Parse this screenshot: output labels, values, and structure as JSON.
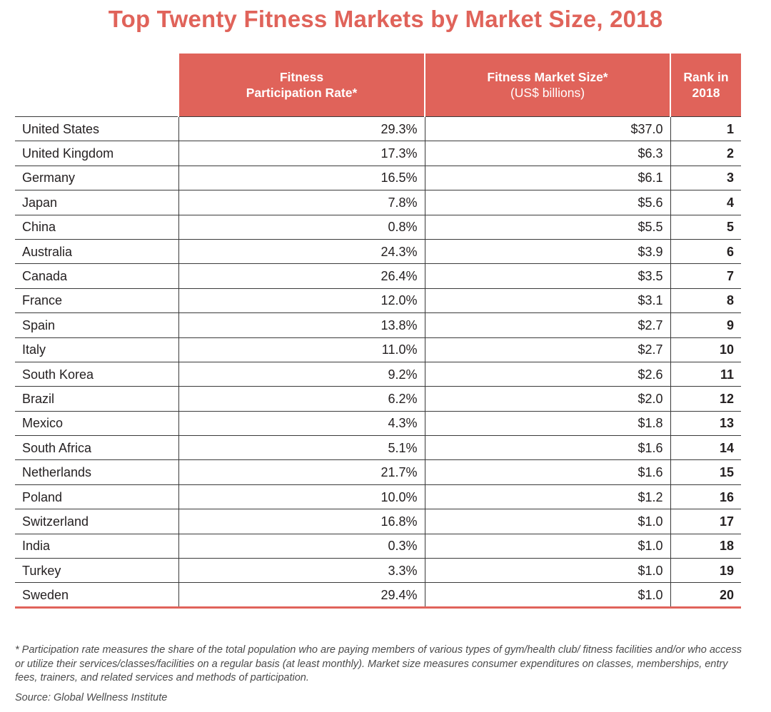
{
  "title": "Top Twenty Fitness Markets by Market Size, 2018",
  "chart_data": {
    "type": "table",
    "title": "Top Twenty Fitness Markets by Market Size, 2018",
    "columns": [
      {
        "line1": "Fitness",
        "line2": "Participation Rate*"
      },
      {
        "line1": "Fitness Market Size*",
        "line2": "(US$ billions)"
      },
      {
        "line1": "Rank in",
        "line2": "2018"
      }
    ],
    "rows": [
      {
        "country": "United States",
        "rate": "29.3%",
        "size": "$37.0",
        "rank": "1"
      },
      {
        "country": "United Kingdom",
        "rate": "17.3%",
        "size": "$6.3",
        "rank": "2"
      },
      {
        "country": "Germany",
        "rate": "16.5%",
        "size": "$6.1",
        "rank": "3"
      },
      {
        "country": "Japan",
        "rate": "7.8%",
        "size": "$5.6",
        "rank": "4"
      },
      {
        "country": "China",
        "rate": "0.8%",
        "size": "$5.5",
        "rank": "5"
      },
      {
        "country": "Australia",
        "rate": "24.3%",
        "size": "$3.9",
        "rank": "6"
      },
      {
        "country": "Canada",
        "rate": "26.4%",
        "size": "$3.5",
        "rank": "7"
      },
      {
        "country": "France",
        "rate": "12.0%",
        "size": "$3.1",
        "rank": "8"
      },
      {
        "country": "Spain",
        "rate": "13.8%",
        "size": "$2.7",
        "rank": "9"
      },
      {
        "country": "Italy",
        "rate": "11.0%",
        "size": "$2.7",
        "rank": "10"
      },
      {
        "country": "South Korea",
        "rate": "9.2%",
        "size": "$2.6",
        "rank": "11"
      },
      {
        "country": "Brazil",
        "rate": "6.2%",
        "size": "$2.0",
        "rank": "12"
      },
      {
        "country": "Mexico",
        "rate": "4.3%",
        "size": "$1.8",
        "rank": "13"
      },
      {
        "country": "South Africa",
        "rate": "5.1%",
        "size": "$1.6",
        "rank": "14"
      },
      {
        "country": "Netherlands",
        "rate": "21.7%",
        "size": "$1.6",
        "rank": "15"
      },
      {
        "country": "Poland",
        "rate": "10.0%",
        "size": "$1.2",
        "rank": "16"
      },
      {
        "country": "Switzerland",
        "rate": "16.8%",
        "size": "$1.0",
        "rank": "17"
      },
      {
        "country": "India",
        "rate": "0.3%",
        "size": "$1.0",
        "rank": "18"
      },
      {
        "country": "Turkey",
        "rate": "3.3%",
        "size": "$1.0",
        "rank": "19"
      },
      {
        "country": "Sweden",
        "rate": "29.4%",
        "size": "$1.0",
        "rank": "20"
      }
    ]
  },
  "footnote": "* Participation rate measures the share of the total population who are paying members of various types of gym/health club/ fitness facilities and/or who access or utilize their services/classes/facilities on a regular basis (at least monthly). Market size measures consumer expenditures on classes, memberships, entry fees, trainers, and related services and methods of participation.",
  "source": "Source: Global Wellness Institute",
  "colors": {
    "accent": "#e0635a",
    "text": "#231f20",
    "rule": "#3a3a3a"
  }
}
